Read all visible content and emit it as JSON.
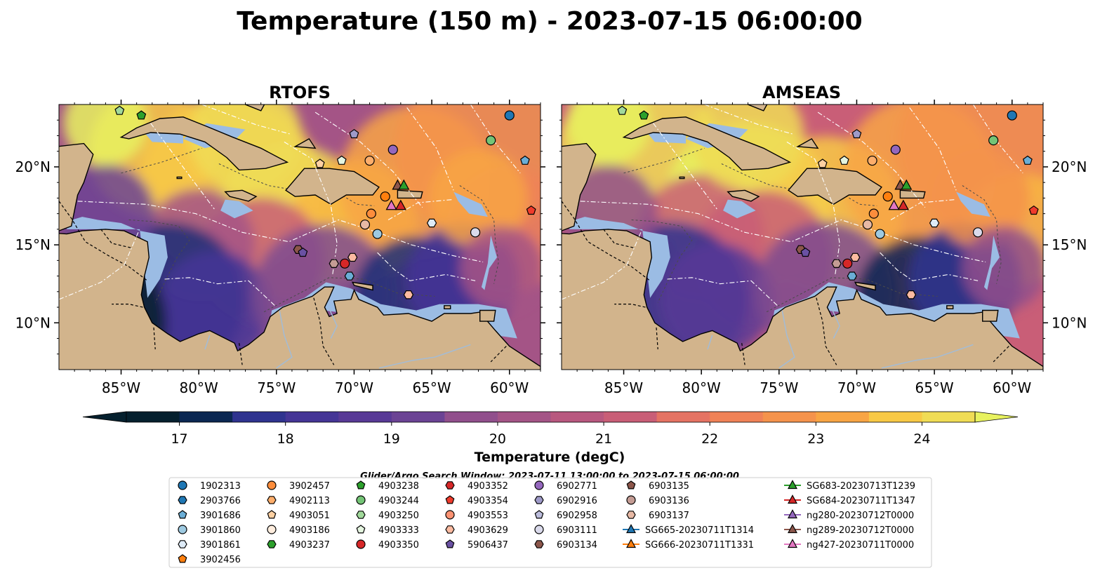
{
  "title": "Temperature (150 m) - 2023-07-15 06:00:00",
  "colors": {
    "land": "#d2b48c",
    "shelf": "#9bbce4",
    "cmap": [
      "#05202e",
      "#0b2752",
      "#1d2e78",
      "#2f338f",
      "#453596",
      "#583996",
      "#6b4394",
      "#7e4b91",
      "#914f8c",
      "#a45486",
      "#b8587f",
      "#c95e77",
      "#d8666e",
      "#e57363",
      "#f08257",
      "#f5934c",
      "#f8a544",
      "#f9b742",
      "#f8c946",
      "#f0dc55",
      "#e8f25f"
    ]
  },
  "chart_data": [
    {
      "type": "heatmap",
      "panel_title": "RTOFS",
      "xlim": [
        -89,
        -58
      ],
      "ylim": [
        7,
        24
      ],
      "xticks": [
        "85°W",
        "80°W",
        "75°W",
        "70°W",
        "65°W",
        "60°W"
      ],
      "xtick_values": [
        -85,
        -80,
        -75,
        -70,
        -65,
        -60
      ],
      "yticks": [
        "10°N",
        "15°N",
        "20°N"
      ],
      "ytick_values": [
        10,
        15,
        20
      ]
    },
    {
      "type": "heatmap",
      "panel_title": "AMSEAS",
      "xlim": [
        -89,
        -58
      ],
      "ylim": [
        7,
        24
      ],
      "xticks": [
        "85°W",
        "80°W",
        "75°W",
        "70°W",
        "65°W",
        "60°W"
      ],
      "xtick_values": [
        -85,
        -80,
        -75,
        -70,
        -65,
        -60
      ],
      "yticks": [
        "10°N",
        "15°N",
        "20°N"
      ],
      "ytick_values": [
        10,
        15,
        20
      ]
    }
  ],
  "colorbar": {
    "label": "Temperature (degC)",
    "min": 16.5,
    "max": 24.5,
    "ticks": [
      17,
      18,
      19,
      20,
      21,
      22,
      23,
      24
    ],
    "tick_labels": [
      "17",
      "18",
      "19",
      "20",
      "21",
      "22",
      "23",
      "24"
    ]
  },
  "search_window": "Glider/Argo Search Window: 2023-07-11 13:00:00 to 2023-07-15 06:00:00",
  "legend": [
    [
      {
        "label": "1902313",
        "marker": "circle",
        "color": "#1f77b4"
      },
      {
        "label": "2903766",
        "marker": "hexagon",
        "color": "#1f77b4"
      },
      {
        "label": "3901686",
        "marker": "pentagon",
        "color": "#6baed6"
      },
      {
        "label": "3901860",
        "marker": "circle",
        "color": "#9ecae1"
      },
      {
        "label": "3901861",
        "marker": "hexagon",
        "color": "#deebf7"
      },
      {
        "label": "3902456",
        "marker": "pentagon",
        "color": "#ff7f0e"
      }
    ],
    [
      {
        "label": "3902457",
        "marker": "circle",
        "color": "#fd8d3c"
      },
      {
        "label": "4902113",
        "marker": "hexagon",
        "color": "#fdae6b"
      },
      {
        "label": "4903051",
        "marker": "pentagon",
        "color": "#fdd0a2"
      },
      {
        "label": "4903186",
        "marker": "circle",
        "color": "#feedde"
      },
      {
        "label": "4903237",
        "marker": "hexagon",
        "color": "#2ca02c"
      }
    ],
    [
      {
        "label": "4903238",
        "marker": "pentagon",
        "color": "#2ca02c"
      },
      {
        "label": "4903244",
        "marker": "circle",
        "color": "#74c476"
      },
      {
        "label": "4903250",
        "marker": "hexagon",
        "color": "#a1d99b"
      },
      {
        "label": "4903333",
        "marker": "pentagon",
        "color": "#e5f5e0"
      },
      {
        "label": "4903350",
        "marker": "circle",
        "color": "#d62728"
      }
    ],
    [
      {
        "label": "4903352",
        "marker": "hexagon",
        "color": "#d62728"
      },
      {
        "label": "4903354",
        "marker": "pentagon",
        "color": "#ef3b2c"
      },
      {
        "label": "4903553",
        "marker": "circle",
        "color": "#fc9272"
      },
      {
        "label": "4903629",
        "marker": "hexagon",
        "color": "#fcbba1"
      },
      {
        "label": "5906437",
        "marker": "pentagon",
        "color": "#6a51a3"
      }
    ],
    [
      {
        "label": "6902771",
        "marker": "circle",
        "color": "#9467bd"
      },
      {
        "label": "6902916",
        "marker": "hexagon",
        "color": "#9e9ac8"
      },
      {
        "label": "6902958",
        "marker": "pentagon",
        "color": "#bcbddc"
      },
      {
        "label": "6903111",
        "marker": "circle",
        "color": "#dadaeb"
      },
      {
        "label": "6903134",
        "marker": "hexagon",
        "color": "#8c564b"
      }
    ],
    [
      {
        "label": "6903135",
        "marker": "pentagon",
        "color": "#8c564b"
      },
      {
        "label": "6903136",
        "marker": "circle",
        "color": "#c49c94"
      },
      {
        "label": "6903137",
        "marker": "hexagon",
        "color": "#e7b9a5"
      },
      {
        "label": "SG665-20230711T1314",
        "marker": "triangle",
        "color": "#1f77b4",
        "line": true
      },
      {
        "label": "SG666-20230711T1331",
        "marker": "triangle",
        "color": "#ff7f0e",
        "line": true
      }
    ],
    [
      {
        "label": "SG683-20230713T1239",
        "marker": "triangle",
        "color": "#2ca02c",
        "line": true
      },
      {
        "label": "SG684-20230711T1347",
        "marker": "triangle",
        "color": "#d62728",
        "line": true
      },
      {
        "label": "ng280-20230712T0000",
        "marker": "triangle",
        "color": "#9467bd",
        "line": true
      },
      {
        "label": "ng289-20230712T0000",
        "marker": "triangle",
        "color": "#8c564b",
        "line": true
      },
      {
        "label": "ng427-20230711T0000",
        "marker": "triangle",
        "color": "#e377c2",
        "line": true
      }
    ]
  ],
  "floats": [
    {
      "lon": -60.0,
      "lat": 23.3,
      "marker": "circle",
      "color": "#1f77b4"
    },
    {
      "lon": -59.0,
      "lat": 20.4,
      "marker": "pentagon",
      "color": "#6baed6"
    },
    {
      "lon": -61.2,
      "lat": 21.7,
      "marker": "circle",
      "color": "#74c476"
    },
    {
      "lon": -67.5,
      "lat": 21.1,
      "marker": "circle",
      "color": "#9467bd"
    },
    {
      "lon": -70.0,
      "lat": 22.1,
      "marker": "pentagon",
      "color": "#9e9ac8"
    },
    {
      "lon": -69.0,
      "lat": 20.4,
      "marker": "circle",
      "color": "#fdae6b"
    },
    {
      "lon": -70.8,
      "lat": 20.4,
      "marker": "pentagon",
      "color": "#e5f5e0"
    },
    {
      "lon": -72.2,
      "lat": 20.2,
      "marker": "pentagon",
      "color": "#fdd0a2"
    },
    {
      "lon": -85.1,
      "lat": 23.6,
      "marker": "pentagon",
      "color": "#a1d99b"
    },
    {
      "lon": -83.7,
      "lat": 23.3,
      "marker": "pentagon",
      "color": "#2ca02c"
    },
    {
      "lon": -68.0,
      "lat": 18.1,
      "marker": "circle",
      "color": "#ff7f0e"
    },
    {
      "lon": -68.9,
      "lat": 17.0,
      "marker": "circle",
      "color": "#fd8d3c"
    },
    {
      "lon": -69.3,
      "lat": 16.3,
      "marker": "circle",
      "color": "#e7b9a5"
    },
    {
      "lon": -68.5,
      "lat": 15.7,
      "marker": "circle",
      "color": "#9ecae1"
    },
    {
      "lon": -65.0,
      "lat": 16.4,
      "marker": "hexagon",
      "color": "#deebf7"
    },
    {
      "lon": -62.2,
      "lat": 15.8,
      "marker": "circle",
      "color": "#dadaeb"
    },
    {
      "lon": -58.6,
      "lat": 17.2,
      "marker": "pentagon",
      "color": "#ef3b2c"
    },
    {
      "lon": -73.6,
      "lat": 14.7,
      "marker": "hexagon",
      "color": "#8c564b"
    },
    {
      "lon": -73.3,
      "lat": 14.5,
      "marker": "pentagon",
      "color": "#6a51a3"
    },
    {
      "lon": -70.1,
      "lat": 14.2,
      "marker": "hexagon",
      "color": "#fcbba1"
    },
    {
      "lon": -70.6,
      "lat": 13.8,
      "marker": "circle",
      "color": "#d62728"
    },
    {
      "lon": -71.3,
      "lat": 13.8,
      "marker": "hexagon",
      "color": "#c49c94"
    },
    {
      "lon": -70.3,
      "lat": 13.0,
      "marker": "hexagon",
      "color": "#6baed6"
    },
    {
      "lon": -66.5,
      "lat": 11.8,
      "marker": "hexagon",
      "color": "#fcbba1"
    }
  ],
  "gliders": [
    {
      "lon": -67.2,
      "lat": 18.8,
      "color": "#8c564b"
    },
    {
      "lon": -66.8,
      "lat": 18.8,
      "color": "#2ca02c"
    },
    {
      "lon": -67.6,
      "lat": 17.5,
      "color": "#e377c2"
    },
    {
      "lon": -67.0,
      "lat": 17.5,
      "color": "#d62728"
    }
  ]
}
